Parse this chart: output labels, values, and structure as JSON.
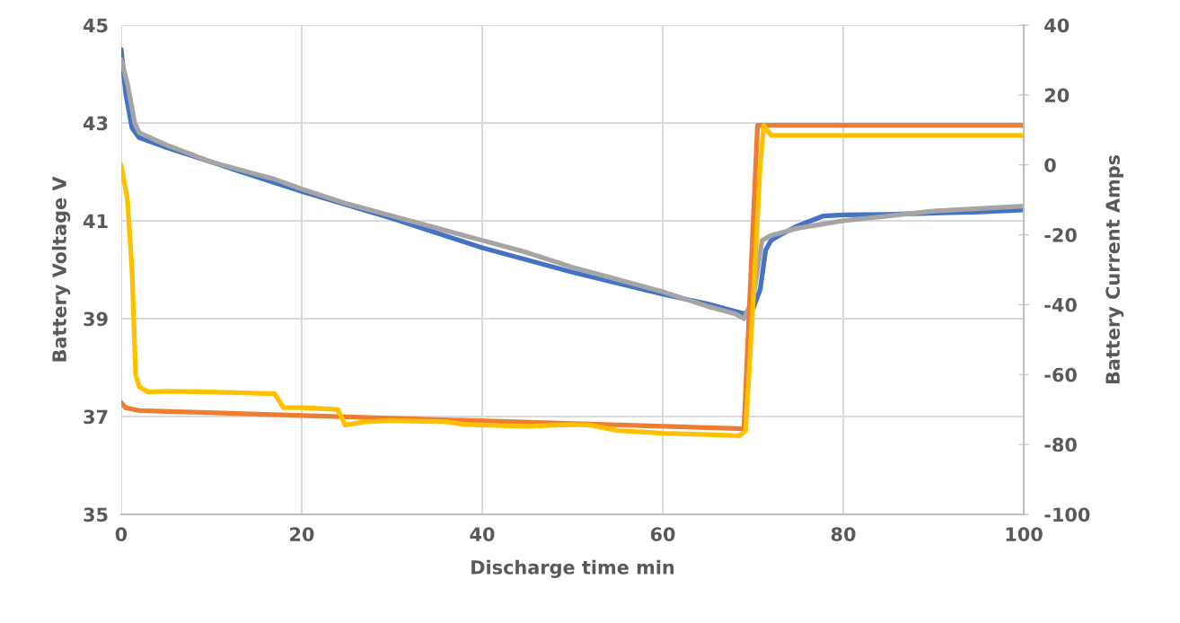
{
  "chart_data": {
    "type": "line",
    "xlabel": "Discharge time min",
    "ylabel": "Battery Voltage V",
    "y2label": "Battery Current Amps",
    "xlim": [
      0,
      100
    ],
    "xticks": [
      0,
      20,
      40,
      60,
      80,
      100
    ],
    "ylim": [
      35,
      45
    ],
    "yticks": [
      35,
      37,
      39,
      41,
      43,
      45
    ],
    "y2lim": [
      -100,
      40
    ],
    "y2ticks": [
      -100,
      -80,
      -60,
      -40,
      -20,
      0,
      20,
      40
    ],
    "grid": true,
    "marker": "none",
    "line_style": "solid",
    "series": [
      {
        "color": "#4472c4",
        "axis": "y",
        "x": [
          0,
          0.5,
          1.2,
          2,
          5,
          10,
          20,
          30,
          40,
          50,
          60,
          65,
          69,
          70,
          70.8,
          71.4,
          72,
          73.4,
          75,
          77.8,
          80,
          85,
          90,
          95,
          100
        ],
        "values": [
          44.5,
          43.6,
          42.9,
          42.7,
          42.5,
          42.2,
          41.6,
          41.05,
          40.45,
          39.95,
          39.5,
          39.3,
          39.1,
          39.2,
          39.6,
          40.4,
          40.6,
          40.75,
          40.9,
          41.1,
          41.12,
          41.13,
          41.16,
          41.18,
          41.22
        ]
      },
      {
        "color": "#a5a5a5",
        "axis": "y",
        "x": [
          0,
          0.7,
          1.5,
          2,
          5,
          10,
          15,
          17,
          20,
          25,
          30,
          35,
          40,
          45,
          50,
          55,
          60,
          65,
          68,
          69,
          70,
          71,
          72,
          75,
          80,
          85,
          90,
          95,
          100
        ],
        "values": [
          44.3,
          43.8,
          43.0,
          42.8,
          42.55,
          42.2,
          41.95,
          41.85,
          41.65,
          41.35,
          41.1,
          40.85,
          40.6,
          40.35,
          40.05,
          39.8,
          39.55,
          39.25,
          39.1,
          39.0,
          39.4,
          40.6,
          40.7,
          40.85,
          41.0,
          41.1,
          41.2,
          41.25,
          41.3
        ]
      },
      {
        "color": "#ed7d31",
        "axis": "y2",
        "x": [
          0,
          0.5,
          2,
          69,
          70.5,
          100
        ],
        "values": [
          -68,
          -69.5,
          -70.3,
          -75.5,
          11.3,
          11.3
        ]
      },
      {
        "color": "#ffc000",
        "axis": "y2",
        "x": [
          0,
          0.7,
          1.2,
          1.6,
          2,
          3,
          5,
          10,
          17,
          18,
          20,
          24,
          24.8,
          27,
          30,
          36,
          38,
          45,
          50,
          52,
          55,
          60,
          65,
          68.5,
          69.2,
          70,
          70.8,
          71.2,
          72,
          100
        ],
        "values": [
          0,
          -10,
          -30,
          -60,
          -63.5,
          -65,
          -64.8,
          -65,
          -65.5,
          -69.5,
          -69.5,
          -70,
          -74.4,
          -73.5,
          -73.2,
          -73.5,
          -74.3,
          -74.8,
          -74.3,
          -74.5,
          -76.0,
          -76.8,
          -77.2,
          -77.5,
          -76,
          -40,
          0,
          11.3,
          8.4,
          8.4
        ]
      }
    ]
  }
}
